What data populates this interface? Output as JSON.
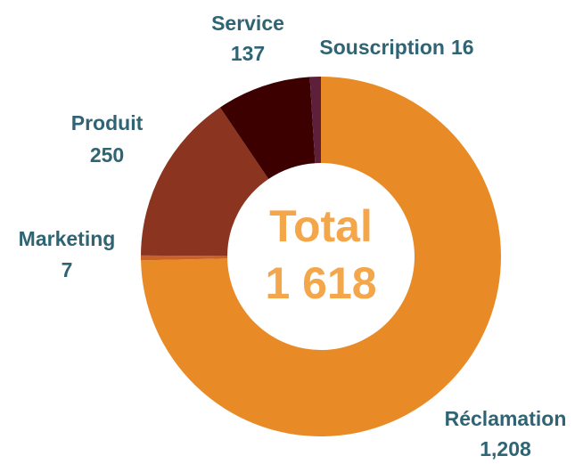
{
  "chart_data": {
    "type": "donut",
    "categories": [
      "Réclamation",
      "Marketing",
      "Produit",
      "Service",
      "Souscription"
    ],
    "values": [
      1208,
      7,
      250,
      137,
      16
    ],
    "value_labels": [
      "1,208",
      "7",
      "250",
      "137",
      "16"
    ],
    "colors": [
      "#e88a25",
      "#c8622a",
      "#8b3520",
      "#3d0000",
      "#5e1f3a"
    ],
    "center_text": [
      "Total",
      "1 618"
    ]
  }
}
